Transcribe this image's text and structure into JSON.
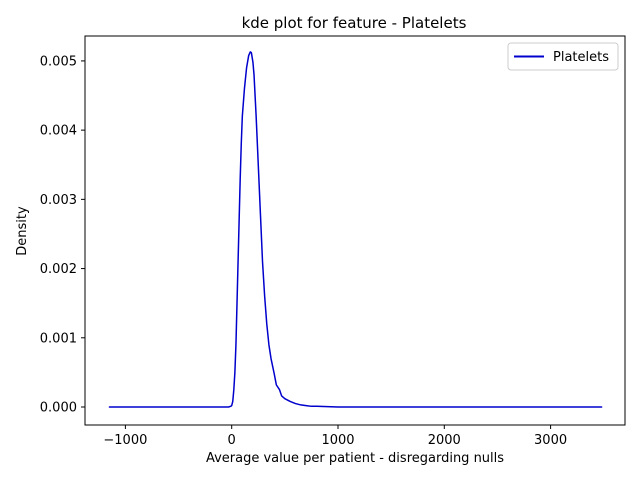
{
  "chart_data": {
    "type": "line",
    "title": "kde plot for feature -  Platelets",
    "xlabel": "Average value per patient - disregarding nulls",
    "ylabel": "Density",
    "xlim": [
      -1380,
      3700
    ],
    "ylim": [
      -0.00026,
      0.00536
    ],
    "xticks": [
      -1000,
      0,
      1000,
      2000,
      3000
    ],
    "xtick_labels": [
      "−1000",
      "0",
      "1000",
      "2000",
      "3000"
    ],
    "yticks": [
      0.0,
      0.001,
      0.002,
      0.003,
      0.004,
      0.005
    ],
    "ytick_labels": [
      "0.000",
      "0.001",
      "0.002",
      "0.003",
      "0.004",
      "0.005"
    ],
    "grid": false,
    "legend_position": "top-right",
    "series": [
      {
        "name": "Platelets",
        "color": "#0000cd",
        "points": [
          [
            -1150,
            0.0
          ],
          [
            -800,
            0.0
          ],
          [
            -400,
            0.0
          ],
          [
            -100,
            0.0
          ],
          [
            -30,
            0.0
          ],
          [
            -10,
            1e-05
          ],
          [
            0,
            2e-05
          ],
          [
            10,
            8e-05
          ],
          [
            20,
            0.00025
          ],
          [
            30,
            0.0005
          ],
          [
            40,
            0.0009
          ],
          [
            50,
            0.0015
          ],
          [
            60,
            0.0021
          ],
          [
            70,
            0.0027
          ],
          [
            80,
            0.0033
          ],
          [
            90,
            0.0038
          ],
          [
            100,
            0.0042
          ],
          [
            120,
            0.0046
          ],
          [
            140,
            0.0049
          ],
          [
            160,
            0.00508
          ],
          [
            175,
            0.00513
          ],
          [
            185,
            0.00512
          ],
          [
            200,
            0.00498
          ],
          [
            210,
            0.0048
          ],
          [
            230,
            0.0042
          ],
          [
            250,
            0.0035
          ],
          [
            270,
            0.0028
          ],
          [
            290,
            0.0021
          ],
          [
            310,
            0.0016
          ],
          [
            330,
            0.0012
          ],
          [
            350,
            0.0009
          ],
          [
            370,
            0.0007
          ],
          [
            400,
            0.00048
          ],
          [
            420,
            0.00032
          ],
          [
            450,
            0.00025
          ],
          [
            470,
            0.00016
          ],
          [
            500,
            0.00012
          ],
          [
            550,
            8e-05
          ],
          [
            600,
            5e-05
          ],
          [
            650,
            3e-05
          ],
          [
            700,
            2e-05
          ],
          [
            750,
            1e-05
          ],
          [
            800,
            1e-05
          ],
          [
            900,
            5e-06
          ],
          [
            1000,
            0.0
          ],
          [
            1200,
            0.0
          ],
          [
            1600,
            0.0
          ],
          [
            2000,
            0.0
          ],
          [
            2500,
            0.0
          ],
          [
            3000,
            0.0
          ],
          [
            3480,
            0.0
          ]
        ]
      }
    ]
  }
}
